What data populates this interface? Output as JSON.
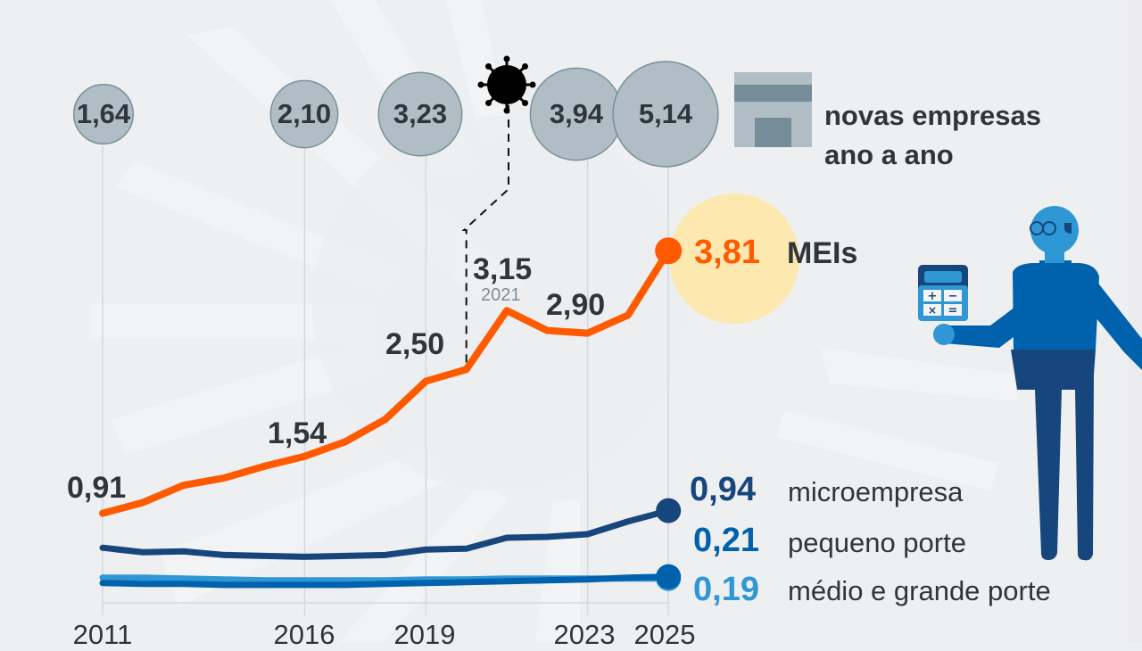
{
  "chart_data": {
    "type": "line",
    "title": "",
    "xlabel": "",
    "ylabel": "",
    "x": [
      2011,
      2012,
      2013,
      2014,
      2015,
      2016,
      2017,
      2018,
      2019,
      2020,
      2021,
      2022,
      2023,
      2024,
      2025
    ],
    "x_tick_labels": [
      "2011",
      "2016",
      "2019",
      "2023",
      "2025"
    ],
    "ylim": [
      0,
      4
    ],
    "grid": "vertical lines at labeled years",
    "series": [
      {
        "name": "MEIs",
        "color": "#ff5a00",
        "values": [
          0.91,
          1.03,
          1.22,
          1.3,
          1.43,
          1.54,
          1.7,
          1.95,
          2.37,
          2.5,
          3.15,
          2.93,
          2.9,
          3.1,
          3.81
        ]
      },
      {
        "name": "microempresa",
        "color": "#17467c",
        "values": [
          0.53,
          0.48,
          0.49,
          0.45,
          0.44,
          0.43,
          0.44,
          0.45,
          0.51,
          0.52,
          0.64,
          0.65,
          0.68,
          0.82,
          0.94
        ]
      },
      {
        "name": "pequeno porte",
        "color": "#0062ac",
        "values": [
          0.14,
          0.13,
          0.13,
          0.12,
          0.12,
          0.12,
          0.12,
          0.13,
          0.14,
          0.15,
          0.16,
          0.17,
          0.18,
          0.2,
          0.21
        ]
      },
      {
        "name": "médio e grande porte",
        "color": "#2f97d4",
        "values": [
          0.2,
          0.2,
          0.19,
          0.18,
          0.17,
          0.17,
          0.17,
          0.17,
          0.18,
          0.18,
          0.19,
          0.19,
          0.19,
          0.19,
          0.19
        ]
      }
    ],
    "point_labels": [
      {
        "series": "MEIs",
        "year": 2011,
        "text": "0,91"
      },
      {
        "series": "MEIs",
        "year": 2016,
        "text": "1,54"
      },
      {
        "series": "MEIs",
        "year": 2020,
        "text": "2,50"
      },
      {
        "series": "MEIs",
        "year": 2021,
        "text": "3,15",
        "sub": "2021"
      },
      {
        "series": "MEIs",
        "year": 2023,
        "text": "2,90"
      }
    ],
    "end_labels": [
      {
        "series": "MEIs",
        "value": "3,81",
        "name": "MEIs"
      },
      {
        "series": "microempresa",
        "value": "0,94",
        "name": "microempresa"
      },
      {
        "series": "pequeno porte",
        "value": "0,21",
        "name": "pequeno porte"
      },
      {
        "series": "médio e grande porte",
        "value": "0,19",
        "name": "médio e grande porte"
      }
    ],
    "bubbles": {
      "legend": "novas empresas ano a ano",
      "items": [
        {
          "year": 2011,
          "value": 1.64,
          "text": "1,64"
        },
        {
          "year": 2016,
          "value": 2.1,
          "text": "2,10"
        },
        {
          "year": 2019,
          "value": 3.23,
          "text": "3,23"
        },
        {
          "year": 2023,
          "value": 3.94,
          "text": "3,94"
        },
        {
          "year": 2025,
          "value": 5.14,
          "text": "5,14"
        }
      ]
    },
    "annotation": {
      "icon": "virus-icon",
      "year": 2020,
      "meaning": "covid-19 pandemic"
    },
    "colors": {
      "mei": "#ff5a00",
      "micro": "#17467c",
      "pequeno": "#0062ac",
      "medio": "#2f97d4",
      "bubble_fill": "#b0bdc5",
      "bubble_stroke": "#7a909b",
      "highlight": "#fde8b0",
      "text": "#30353b"
    }
  },
  "legend": {
    "line1": "novas empresas",
    "line2": "ano a ano"
  }
}
